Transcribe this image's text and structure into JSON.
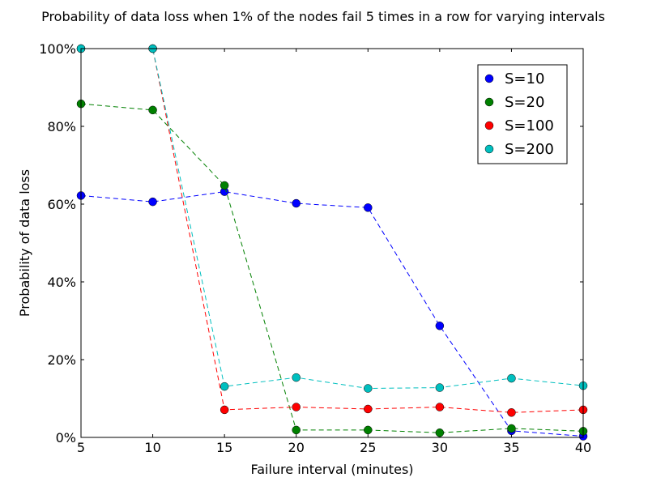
{
  "chart_data": {
    "type": "line",
    "title": "Probability of data loss when 1% of the nodes fail 5 times in a row for varying intervals",
    "xlabel": "Failure interval (minutes)",
    "ylabel": "Probability of data loss",
    "x": [
      5,
      10,
      15,
      20,
      25,
      30,
      35,
      40
    ],
    "xlim": [
      5,
      40
    ],
    "ylim": [
      0,
      1
    ],
    "xticks": [
      5,
      10,
      15,
      20,
      25,
      30,
      35,
      40
    ],
    "xtick_labels": [
      "5",
      "10",
      "15",
      "20",
      "25",
      "30",
      "35",
      "40"
    ],
    "yticks": [
      0,
      0.2,
      0.4,
      0.6,
      0.8,
      1.0
    ],
    "ytick_labels": [
      "0%",
      "20%",
      "40%",
      "60%",
      "80%",
      "100%"
    ],
    "grid": false,
    "legend_position": "top-right",
    "line_style": "dashed",
    "marker": "circle",
    "series": [
      {
        "name": "S=10",
        "color": "#0000ff",
        "values": [
          0.622,
          0.606,
          0.632,
          0.602,
          0.591,
          0.287,
          0.017,
          0.003
        ]
      },
      {
        "name": "S=20",
        "color": "#008000",
        "values": [
          0.858,
          0.842,
          0.648,
          0.019,
          0.019,
          0.012,
          0.023,
          0.016
        ]
      },
      {
        "name": "S=100",
        "color": "#ff0000",
        "values": [
          1.0,
          1.0,
          0.071,
          0.078,
          0.073,
          0.078,
          0.064,
          0.071
        ]
      },
      {
        "name": "S=200",
        "color": "#00bfbf",
        "values": [
          1.0,
          1.0,
          0.131,
          0.154,
          0.126,
          0.128,
          0.152,
          0.133
        ]
      }
    ]
  }
}
